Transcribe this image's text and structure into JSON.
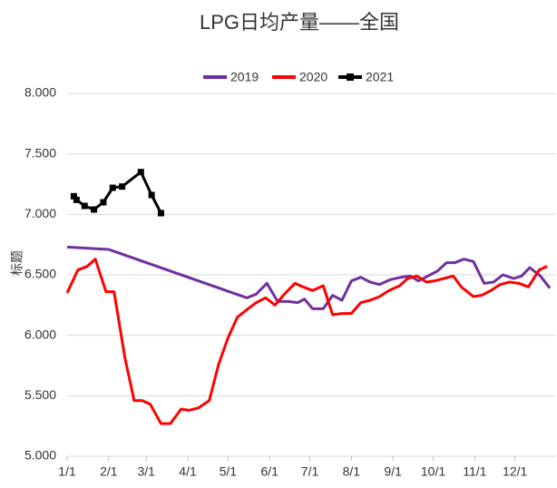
{
  "chart_data": {
    "type": "line",
    "title": "LPG日均产量——全国",
    "y_label": "标题",
    "xlim": [
      0,
      364
    ],
    "ylim": [
      5,
      8
    ],
    "xticks": [
      {
        "value": 0,
        "label": "1/1"
      },
      {
        "value": 31,
        "label": "2/1"
      },
      {
        "value": 59,
        "label": "3/1"
      },
      {
        "value": 90,
        "label": "4/1"
      },
      {
        "value": 120,
        "label": "5/1"
      },
      {
        "value": 151,
        "label": "6/1"
      },
      {
        "value": 181,
        "label": "7/1"
      },
      {
        "value": 212,
        "label": "8/1"
      },
      {
        "value": 243,
        "label": "9/1"
      },
      {
        "value": 273,
        "label": "10/1"
      },
      {
        "value": 304,
        "label": "11/1"
      },
      {
        "value": 334,
        "label": "12/1"
      }
    ],
    "yticks": [
      {
        "value": 5,
        "label": "5.000"
      },
      {
        "value": 5.5,
        "label": "5.500"
      },
      {
        "value": 6,
        "label": "6.000"
      },
      {
        "value": 6.5,
        "label": "6.500"
      },
      {
        "value": 7,
        "label": "7.000"
      },
      {
        "value": 7.5,
        "label": "7.500"
      },
      {
        "value": 8,
        "label": "8.000"
      }
    ],
    "grid": true,
    "legend": "top",
    "series": [
      {
        "name": "2019",
        "color": "#7030a0",
        "marker": false,
        "x": [
          0,
          31,
          134,
          141,
          149,
          157,
          165,
          172,
          177,
          183,
          191,
          198,
          205,
          212,
          219,
          226,
          233,
          241,
          249,
          256,
          262,
          269,
          276,
          283,
          289,
          296,
          303,
          311,
          318,
          325,
          333,
          339,
          345,
          353,
          360
        ],
        "values": [
          6.73,
          6.71,
          6.31,
          6.34,
          6.43,
          6.28,
          6.28,
          6.27,
          6.3,
          6.22,
          6.22,
          6.33,
          6.29,
          6.45,
          6.48,
          6.44,
          6.42,
          6.46,
          6.48,
          6.49,
          6.45,
          6.49,
          6.53,
          6.6,
          6.6,
          6.63,
          6.61,
          6.43,
          6.44,
          6.5,
          6.47,
          6.49,
          6.56,
          6.49,
          6.39
        ]
      },
      {
        "name": "2020",
        "color": "#ff0000",
        "marker": false,
        "x": [
          0,
          8,
          15,
          21,
          29,
          35,
          43,
          50,
          56,
          62,
          70,
          77,
          85,
          91,
          98,
          106,
          113,
          120,
          127,
          135,
          141,
          148,
          155,
          162,
          170,
          176,
          183,
          191,
          198,
          205,
          212,
          219,
          226,
          233,
          240,
          248,
          254,
          261,
          268,
          274,
          281,
          288,
          294,
          303,
          309,
          316,
          323,
          330,
          337,
          344,
          352,
          358
        ],
        "values": [
          6.35,
          6.54,
          6.57,
          6.63,
          6.36,
          6.36,
          5.82,
          5.46,
          5.46,
          5.43,
          5.27,
          5.27,
          5.39,
          5.38,
          5.4,
          5.46,
          5.76,
          5.98,
          6.15,
          6.22,
          6.27,
          6.31,
          6.25,
          6.34,
          6.43,
          6.4,
          6.37,
          6.41,
          6.17,
          6.18,
          6.18,
          6.27,
          6.29,
          6.32,
          6.37,
          6.41,
          6.47,
          6.49,
          6.44,
          6.45,
          6.47,
          6.49,
          6.4,
          6.32,
          6.33,
          6.37,
          6.42,
          6.44,
          6.43,
          6.4,
          6.54,
          6.57
        ]
      },
      {
        "name": "2021",
        "color": "#000000",
        "marker": true,
        "x": [
          5,
          7,
          13,
          20,
          27,
          34,
          41,
          55,
          63,
          70
        ],
        "values": [
          7.15,
          7.12,
          7.07,
          7.04,
          7.1,
          7.22,
          7.23,
          7.35,
          7.16,
          7.01
        ]
      }
    ]
  }
}
